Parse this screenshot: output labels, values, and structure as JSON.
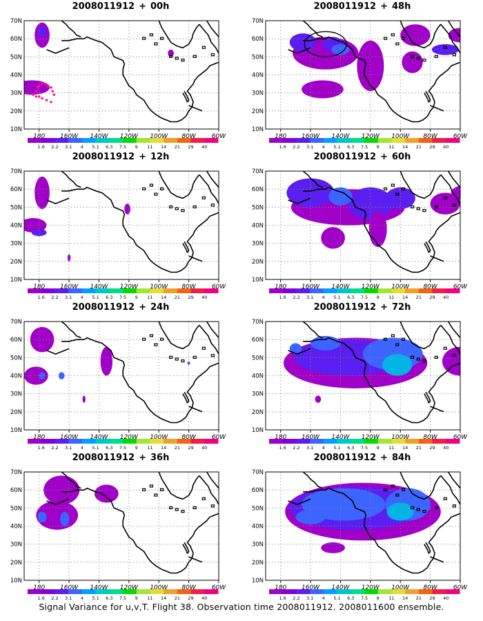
{
  "panels": [
    {
      "id": "p00",
      "init": "2008011912",
      "sep": "+",
      "lead": "00h",
      "col": 0,
      "row": 0,
      "blobs": [
        [
          182,
          62,
          5,
          7,
          1
        ],
        [
          182,
          64,
          3,
          3,
          2
        ],
        [
          175,
          33,
          12,
          4,
          1
        ],
        [
          176,
          34,
          8,
          2,
          1
        ],
        [
          268,
          52,
          2,
          2,
          1
        ]
      ],
      "dots": true,
      "ellipse": null
    },
    {
      "id": "p48",
      "init": "2008011912",
      "sep": "+",
      "lead": "48h",
      "col": 1,
      "row": 0,
      "blobs": [
        [
          210,
          52,
          22,
          9,
          1
        ],
        [
          195,
          58,
          9,
          5,
          2
        ],
        [
          215,
          57,
          7,
          4,
          2
        ],
        [
          220,
          54,
          6,
          3,
          3
        ],
        [
          240,
          45,
          9,
          14,
          1
        ],
        [
          270,
          62,
          10,
          6,
          1
        ],
        [
          300,
          62,
          8,
          4,
          1
        ],
        [
          290,
          54,
          9,
          3,
          2
        ],
        [
          208,
          32,
          14,
          5,
          1
        ],
        [
          268,
          47,
          7,
          6,
          1
        ]
      ],
      "dots": false,
      "ellipse": [
        210,
        57,
        14,
        7
      ]
    },
    {
      "id": "p12",
      "init": "2008011912",
      "sep": "+",
      "lead": "12h",
      "col": 0,
      "row": 1,
      "blobs": [
        [
          182,
          58,
          5,
          9,
          1
        ],
        [
          176,
          40,
          9,
          4,
          1
        ],
        [
          180,
          36,
          5,
          2,
          2
        ],
        [
          200,
          22,
          1,
          2,
          1
        ],
        [
          239,
          49,
          2,
          3,
          1
        ]
      ],
      "dots": false,
      "ellipse": null
    },
    {
      "id": "p60",
      "init": "2008011912",
      "sep": "+",
      "lead": "60h",
      "col": 1,
      "row": 1,
      "blobs": [
        [
          225,
          50,
          38,
          10,
          1
        ],
        [
          200,
          58,
          16,
          8,
          2
        ],
        [
          240,
          52,
          15,
          9,
          2
        ],
        [
          220,
          56,
          8,
          5,
          3
        ],
        [
          260,
          55,
          10,
          6,
          2
        ],
        [
          290,
          52,
          10,
          6,
          1
        ],
        [
          245,
          38,
          6,
          10,
          1
        ],
        [
          215,
          33,
          8,
          6,
          1
        ],
        [
          302,
          58,
          8,
          4,
          1
        ]
      ],
      "dots": false,
      "ellipse": null
    },
    {
      "id": "p24",
      "init": "2008011912",
      "sep": "+",
      "lead": "24h",
      "col": 0,
      "row": 2,
      "blobs": [
        [
          182,
          60,
          8,
          7,
          1
        ],
        [
          178,
          40,
          8,
          5,
          1
        ],
        [
          182,
          40,
          2,
          2,
          3
        ],
        [
          195,
          40,
          2,
          2,
          3
        ],
        [
          225,
          48,
          4,
          8,
          1
        ],
        [
          210,
          27,
          1,
          2,
          1
        ],
        [
          280,
          47,
          1,
          1,
          3
        ]
      ],
      "dots": false,
      "ellipse": null
    },
    {
      "id": "p72",
      "init": "2008011912",
      "sep": "+",
      "lead": "72h",
      "col": 1,
      "row": 2,
      "blobs": [
        [
          230,
          47,
          48,
          14,
          1
        ],
        [
          225,
          50,
          36,
          10,
          2
        ],
        [
          255,
          52,
          20,
          9,
          3
        ],
        [
          258,
          46,
          10,
          6,
          4
        ],
        [
          210,
          58,
          10,
          4,
          3
        ],
        [
          300,
          48,
          12,
          8,
          1
        ],
        [
          205,
          27,
          2,
          2,
          1
        ],
        [
          190,
          55,
          4,
          3,
          3
        ]
      ],
      "dots": false,
      "ellipse": null
    },
    {
      "id": "p36",
      "init": "2008011912",
      "sep": "+",
      "lead": "36h",
      "col": 0,
      "row": 3,
      "blobs": [
        [
          195,
          60,
          12,
          8,
          1
        ],
        [
          192,
          46,
          14,
          8,
          1
        ],
        [
          182,
          45,
          3,
          3,
          3
        ],
        [
          197,
          44,
          3,
          4,
          3
        ],
        [
          225,
          58,
          8,
          5,
          1
        ]
      ],
      "dots": false,
      "ellipse": null
    },
    {
      "id": "p84",
      "init": "2008011912",
      "sep": "+",
      "lead": "84h",
      "col": 1,
      "row": 3,
      "blobs": [
        [
          235,
          48,
          52,
          16,
          1
        ],
        [
          230,
          50,
          44,
          12,
          2
        ],
        [
          222,
          52,
          28,
          9,
          3
        ],
        [
          265,
          52,
          15,
          9,
          3
        ],
        [
          260,
          48,
          9,
          5,
          4
        ],
        [
          315,
          45,
          12,
          12,
          1
        ],
        [
          215,
          28,
          8,
          3,
          1
        ],
        [
          200,
          45,
          10,
          4,
          3
        ]
      ],
      "dots": false,
      "ellipse": null
    }
  ],
  "axis": {
    "lon_min": 170,
    "lon_max": 300,
    "lat_min": 10,
    "lat_max": 70,
    "lat_labels": [
      "10N",
      "20N",
      "30N",
      "40N",
      "50N",
      "60N",
      "70N"
    ],
    "lon_labels": [
      "180",
      "160W",
      "140W",
      "120W",
      "100W",
      "80W",
      "60W"
    ],
    "lon_ticks": [
      180,
      200,
      220,
      240,
      260,
      280,
      300
    ]
  },
  "colorbar": {
    "labels": [
      "1.6",
      "2.2",
      "3.1",
      "4",
      "5.1",
      "6.3",
      "7.5",
      "9",
      "11",
      "14",
      "21",
      "29",
      "40"
    ],
    "colors": [
      "#a000c8",
      "#8200dc",
      "#5a1ef0",
      "#3c64ff",
      "#00a0ff",
      "#00c8c8",
      "#00dc8c",
      "#00dc00",
      "#a0e632",
      "#e6dc32",
      "#f0a028",
      "#f06414",
      "#f01e46",
      "#f00082"
    ]
  },
  "fill_colors": [
    "#a000c8",
    "#5a1ef0",
    "#3c64ff",
    "#00b4e6",
    "#00c8a0"
  ],
  "caption": "Signal Variance for u,v,T. Flight 38. Observation time 2008011912. 2008011600 ensemble."
}
